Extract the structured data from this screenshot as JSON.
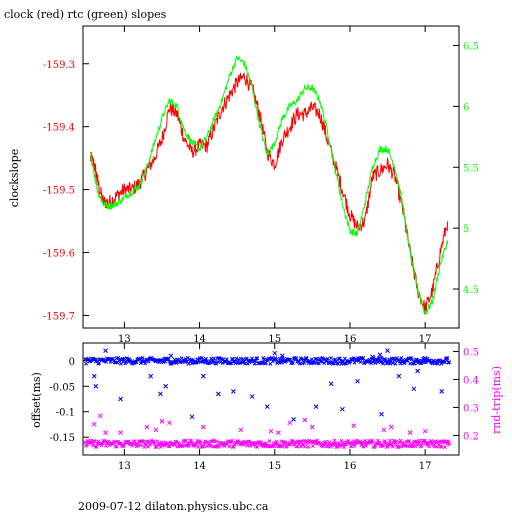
{
  "chart_data": [
    {
      "type": "line",
      "title": "clock (red) rtc (green) slopes",
      "xlabel": "",
      "ylabel": "clockslope",
      "xlim": [
        12.45,
        17.45
      ],
      "ylim_left": [
        -159.72,
        -159.24
      ],
      "ylim_right": [
        4.18,
        6.66
      ],
      "x_ticks": [
        "13",
        "14",
        "15",
        "16",
        "17"
      ],
      "y_ticks_left": [
        "-159.3",
        "-159.4",
        "-159.5",
        "-159.6",
        "-159.7"
      ],
      "y_ticks_right": [
        "6.5",
        "6",
        "5.5",
        "5",
        "4.5"
      ],
      "axis_colors": {
        "left": "#ff0000",
        "right": "#00ff00"
      },
      "series": [
        {
          "name": "clock",
          "axis": "left",
          "color": "#ff0000",
          "x": [
            12.55,
            12.6,
            12.65,
            12.72,
            12.8,
            12.9,
            13.0,
            13.1,
            13.2,
            13.3,
            13.4,
            13.5,
            13.6,
            13.7,
            13.8,
            13.9,
            14.0,
            14.1,
            14.2,
            14.3,
            14.4,
            14.5,
            14.6,
            14.7,
            14.8,
            14.9,
            15.0,
            15.1,
            15.2,
            15.3,
            15.4,
            15.5,
            15.6,
            15.7,
            15.8,
            15.9,
            16.0,
            16.1,
            16.2,
            16.3,
            16.4,
            16.5,
            16.6,
            16.7,
            16.8,
            16.9,
            17.0,
            17.1,
            17.2,
            17.3
          ],
          "y": [
            -159.45,
            -159.46,
            -159.49,
            -159.52,
            -159.52,
            -159.51,
            -159.5,
            -159.5,
            -159.49,
            -159.47,
            -159.45,
            -159.42,
            -159.37,
            -159.38,
            -159.42,
            -159.44,
            -159.43,
            -159.43,
            -159.4,
            -159.37,
            -159.35,
            -159.33,
            -159.32,
            -159.34,
            -159.38,
            -159.44,
            -159.46,
            -159.42,
            -159.4,
            -159.38,
            -159.38,
            -159.37,
            -159.38,
            -159.42,
            -159.46,
            -159.5,
            -159.54,
            -159.56,
            -159.55,
            -159.48,
            -159.47,
            -159.46,
            -159.48,
            -159.53,
            -159.6,
            -159.66,
            -159.69,
            -159.66,
            -159.6,
            -159.55
          ]
        },
        {
          "name": "rtc",
          "axis": "right",
          "color": "#00ff00",
          "x": [
            12.55,
            12.6,
            12.65,
            12.72,
            12.8,
            12.9,
            13.0,
            13.1,
            13.2,
            13.3,
            13.4,
            13.5,
            13.6,
            13.7,
            13.8,
            13.9,
            14.0,
            14.1,
            14.2,
            14.3,
            14.4,
            14.5,
            14.6,
            14.7,
            14.8,
            14.9,
            15.0,
            15.1,
            15.2,
            15.3,
            15.4,
            15.5,
            15.6,
            15.7,
            15.8,
            15.9,
            16.0,
            16.1,
            16.2,
            16.3,
            16.4,
            16.5,
            16.6,
            16.7,
            16.8,
            16.9,
            17.0,
            17.1,
            17.2,
            17.3
          ],
          "y": [
            5.6,
            5.45,
            5.3,
            5.2,
            5.18,
            5.2,
            5.25,
            5.3,
            5.35,
            5.5,
            5.7,
            5.9,
            6.05,
            6.0,
            5.8,
            5.7,
            5.65,
            5.75,
            5.9,
            6.05,
            6.25,
            6.4,
            6.35,
            6.15,
            5.85,
            5.6,
            5.7,
            5.9,
            6.0,
            6.05,
            6.15,
            6.15,
            6.05,
            5.8,
            5.5,
            5.2,
            4.98,
            4.95,
            5.2,
            5.5,
            5.65,
            5.65,
            5.5,
            5.2,
            4.8,
            4.5,
            4.3,
            4.4,
            4.7,
            4.9
          ]
        }
      ]
    },
    {
      "type": "scatter",
      "xlabel": "",
      "ylabel": "offset(ms)",
      "ylabel_right": "rnd-trip(ms)",
      "xlim": [
        12.45,
        17.45
      ],
      "ylim_left": [
        -0.185,
        0.035
      ],
      "ylim_right": [
        0.13,
        0.53
      ],
      "x_ticks": [
        "13",
        "14",
        "15",
        "16",
        "17"
      ],
      "y_ticks_left": [
        "0",
        "-0.05",
        "-0.1",
        "-0.15"
      ],
      "y_ticks_right": [
        "0.5",
        "0.4",
        "0.3",
        "0.2"
      ],
      "axis_colors": {
        "left": "#000000",
        "right": "#ff00ff"
      },
      "series": [
        {
          "name": "offset",
          "axis": "left",
          "color": "#0000ff",
          "band_level": 0.0,
          "band_halfwidth": 0.006,
          "outliers": [
            {
              "x": 12.6,
              "y": -0.03
            },
            {
              "x": 12.62,
              "y": -0.05
            },
            {
              "x": 12.75,
              "y": 0.02
            },
            {
              "x": 12.95,
              "y": -0.075
            },
            {
              "x": 13.35,
              "y": -0.03
            },
            {
              "x": 13.48,
              "y": -0.065
            },
            {
              "x": 13.55,
              "y": -0.05
            },
            {
              "x": 13.62,
              "y": 0.01
            },
            {
              "x": 13.9,
              "y": -0.11
            },
            {
              "x": 14.05,
              "y": -0.03
            },
            {
              "x": 14.25,
              "y": -0.065
            },
            {
              "x": 14.45,
              "y": -0.06
            },
            {
              "x": 14.7,
              "y": -0.07
            },
            {
              "x": 14.9,
              "y": -0.09
            },
            {
              "x": 15.0,
              "y": 0.015
            },
            {
              "x": 15.1,
              "y": 0.01
            },
            {
              "x": 15.25,
              "y": -0.115
            },
            {
              "x": 15.55,
              "y": -0.09
            },
            {
              "x": 15.75,
              "y": -0.045
            },
            {
              "x": 15.9,
              "y": -0.095
            },
            {
              "x": 16.1,
              "y": -0.04
            },
            {
              "x": 16.3,
              "y": 0.008
            },
            {
              "x": 16.4,
              "y": 0.012
            },
            {
              "x": 16.42,
              "y": -0.105
            },
            {
              "x": 16.5,
              "y": 0.02
            },
            {
              "x": 16.65,
              "y": -0.03
            },
            {
              "x": 16.85,
              "y": -0.055
            },
            {
              "x": 16.9,
              "y": -0.02
            },
            {
              "x": 17.0,
              "y": 0.005
            },
            {
              "x": 17.22,
              "y": -0.06
            }
          ]
        },
        {
          "name": "rnd-trip",
          "axis": "right",
          "color": "#ff00ff",
          "band_level": 0.17,
          "band_halfwidth": 0.012,
          "outliers": [
            {
              "x": 12.6,
              "y": 0.24
            },
            {
              "x": 12.68,
              "y": 0.27
            },
            {
              "x": 12.75,
              "y": 0.21
            },
            {
              "x": 12.95,
              "y": 0.21
            },
            {
              "x": 13.3,
              "y": 0.23
            },
            {
              "x": 13.42,
              "y": 0.22
            },
            {
              "x": 13.5,
              "y": 0.25
            },
            {
              "x": 13.6,
              "y": 0.245
            },
            {
              "x": 14.05,
              "y": 0.23
            },
            {
              "x": 14.55,
              "y": 0.22
            },
            {
              "x": 14.95,
              "y": 0.215
            },
            {
              "x": 15.05,
              "y": 0.21
            },
            {
              "x": 15.2,
              "y": 0.245
            },
            {
              "x": 15.4,
              "y": 0.255
            },
            {
              "x": 15.5,
              "y": 0.23
            },
            {
              "x": 16.05,
              "y": 0.235
            },
            {
              "x": 16.45,
              "y": 0.22
            },
            {
              "x": 16.55,
              "y": 0.23
            },
            {
              "x": 16.8,
              "y": 0.21
            },
            {
              "x": 17.0,
              "y": 0.215
            }
          ]
        }
      ]
    }
  ],
  "footer": "2009-07-12 dilaton.physics.ubc.ca"
}
